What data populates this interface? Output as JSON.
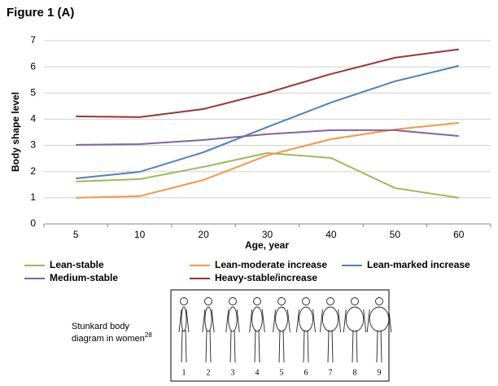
{
  "chart_data": {
    "type": "line",
    "title": "Figure 1 (A)",
    "x_label": "Age, year",
    "y_label": "Body shape level",
    "categories": [
      "5",
      "10",
      "20",
      "30",
      "40",
      "50",
      "60"
    ],
    "ylim": [
      0,
      7
    ],
    "yticks": [
      0,
      1,
      2,
      3,
      4,
      5,
      6,
      7
    ],
    "grid": true,
    "series": [
      {
        "name": "Lean-stable",
        "color": "#9bbb59",
        "values": [
          1.62,
          1.71,
          2.18,
          2.71,
          2.52,
          1.37,
          1.0
        ]
      },
      {
        "name": "Lean-moderate increase",
        "color": "#f79646",
        "values": [
          1.0,
          1.06,
          1.68,
          2.62,
          3.24,
          3.61,
          3.86
        ]
      },
      {
        "name": "Lean-marked increase",
        "color": "#4f81bd",
        "values": [
          1.74,
          1.99,
          2.74,
          3.7,
          4.64,
          5.45,
          6.04
        ]
      },
      {
        "name": "Medium-stable",
        "color": "#8064a2",
        "values": [
          3.02,
          3.05,
          3.21,
          3.43,
          3.58,
          3.58,
          3.36
        ]
      },
      {
        "name": "Heavy-stable/increase",
        "color": "#953735",
        "values": [
          4.11,
          4.08,
          4.39,
          5.01,
          5.73,
          6.35,
          6.67
        ]
      }
    ]
  },
  "inset": {
    "caption_line1": "Stunkard body",
    "caption_line2": "diagram in women",
    "caption_ref": "28",
    "labels": [
      "1",
      "2",
      "3",
      "4",
      "5",
      "6",
      "7",
      "8",
      "9"
    ]
  }
}
